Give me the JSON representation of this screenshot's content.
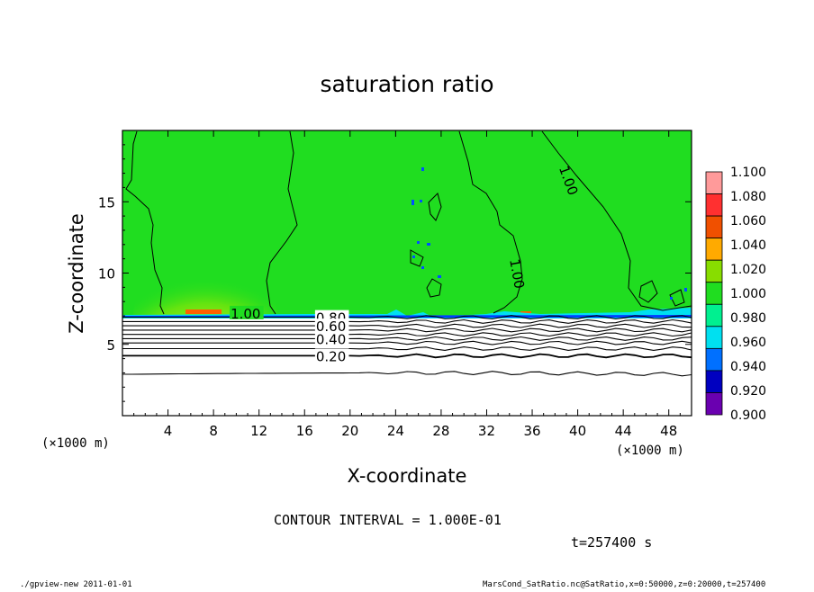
{
  "chart_data": {
    "type": "heatmap",
    "title": "saturation ratio",
    "xlabel": "X-coordinate",
    "ylabel": "Z-coordinate",
    "x_unit_note": "(×1000 m)",
    "z_unit_note": "(×1000 m)",
    "xlim": [
      0,
      50
    ],
    "ylim": [
      0,
      20
    ],
    "x_ticks": [
      4,
      8,
      12,
      16,
      20,
      24,
      28,
      32,
      36,
      40,
      44,
      48
    ],
    "y_ticks": [
      5,
      10,
      15
    ],
    "colorbar": {
      "levels": [
        "1.100",
        "1.080",
        "1.060",
        "1.040",
        "1.020",
        "1.000",
        "0.980",
        "0.960",
        "0.940",
        "0.920",
        "0.900"
      ],
      "colors": [
        "#ff9a9a",
        "#ff3030",
        "#f05000",
        "#ffaa00",
        "#88dd00",
        "#20dd20",
        "#00f090",
        "#00e0f0",
        "#0070ff",
        "#0000c0",
        "#6a00b0"
      ]
    },
    "contour_labels": [
      {
        "text": "1.00",
        "x": 9.5,
        "z": 7.2
      },
      {
        "text": "0.80",
        "x": 17.0,
        "z": 6.9
      },
      {
        "text": "0.60",
        "x": 17.0,
        "z": 6.3
      },
      {
        "text": "0.40",
        "x": 17.0,
        "z": 5.4
      },
      {
        "text": "0.20",
        "x": 17.0,
        "z": 4.2
      },
      {
        "text": "1.00",
        "x": 38.8,
        "z": 17.5
      },
      {
        "text": "1.00",
        "x": 34.5,
        "z": 11.0
      }
    ],
    "contour_interval_text": "CONTOUR INTERVAL = 1.000E-01",
    "time_text": "t=257400 s"
  },
  "footer": {
    "left": "./gpview-new  2011-01-01",
    "right": "MarsCond_SatRatio.nc@SatRatio,x=0:50000,z=0:20000,t=257400"
  }
}
